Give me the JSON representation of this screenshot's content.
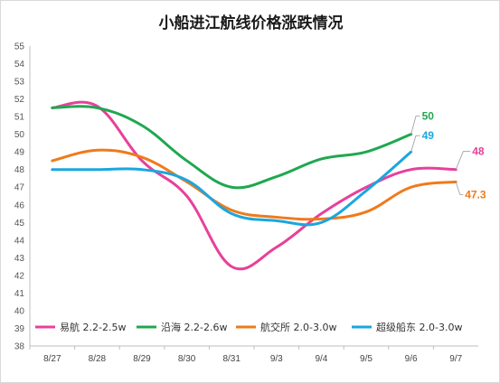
{
  "chart_data": {
    "type": "line",
    "title": "小船进江航线价格涨跌情况",
    "xlabel": "",
    "ylabel": "",
    "categories": [
      "8/27",
      "8/28",
      "8/29",
      "8/30",
      "8/31",
      "9/3",
      "9/4",
      "9/5",
      "9/6",
      "9/7"
    ],
    "ylim": [
      38,
      55
    ],
    "yticks": [
      38,
      39,
      40,
      41,
      42,
      43,
      44,
      45,
      46,
      47,
      48,
      49,
      50,
      51,
      52,
      53,
      54,
      55
    ],
    "grid": false,
    "legend": "bottom",
    "series": [
      {
        "name": "易航 2.2-2.5w",
        "color": "#e8409a",
        "values": [
          51.5,
          51.6,
          48.5,
          46.5,
          42.5,
          43.6,
          45.5,
          47.0,
          48.0,
          48.0
        ],
        "end_label": "48"
      },
      {
        "name": "沿海 2.2-2.6w",
        "color": "#1fa84f",
        "values": [
          51.5,
          51.5,
          50.5,
          48.5,
          47.0,
          47.6,
          48.6,
          49.0,
          50.0,
          null
        ],
        "end_label": "50"
      },
      {
        "name": "航交所 2.0-3.0w",
        "color": "#f07a1a",
        "values": [
          48.5,
          49.1,
          48.7,
          47.3,
          45.7,
          45.3,
          45.2,
          45.6,
          47.0,
          47.3
        ],
        "end_label": "47.3"
      },
      {
        "name": "超级船东 2.0-3.0w",
        "color": "#1aa6e0",
        "values": [
          48.0,
          48.0,
          48.0,
          47.4,
          45.5,
          45.1,
          45.0,
          46.8,
          49.0,
          null
        ],
        "end_label": "49"
      }
    ]
  }
}
